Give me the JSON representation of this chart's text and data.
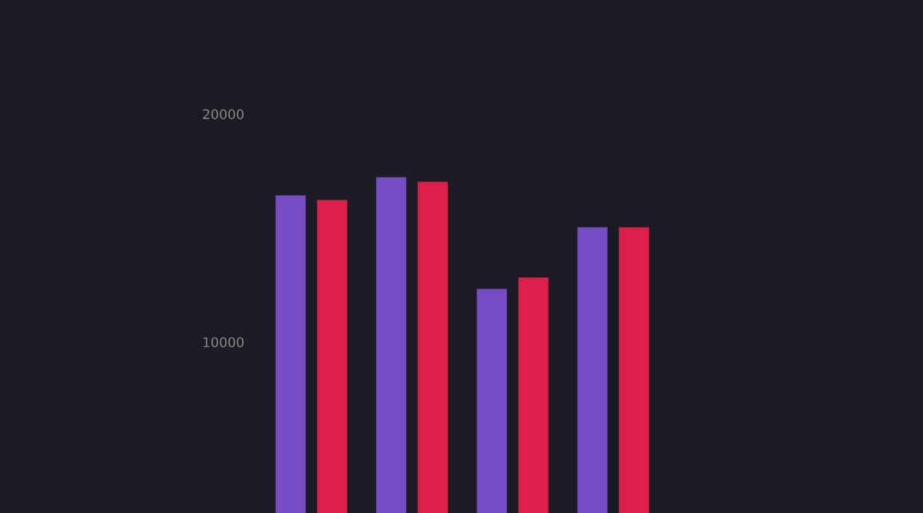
{
  "chart_data": {
    "type": "bar",
    "categories": [
      null,
      null,
      null,
      null
    ],
    "series": [
      {
        "color": "#764bc4",
        "values": [
          16400,
          17200,
          12300,
          15000
        ]
      },
      {
        "color": "#de1f4b",
        "values": [
          16200,
          17000,
          12800,
          15000
        ]
      }
    ],
    "ylim": [
      2500,
      25000
    ],
    "yticks": [
      10000,
      20000
    ],
    "grid": false,
    "tick_labels": "y"
  }
}
